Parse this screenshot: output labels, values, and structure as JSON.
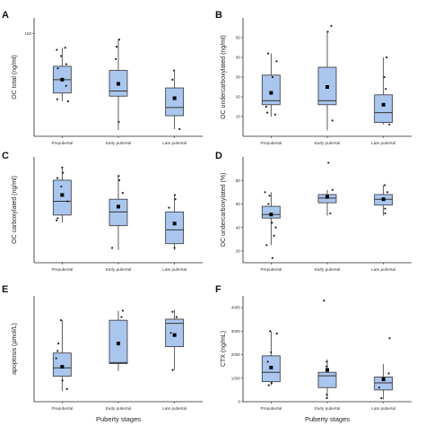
{
  "chart_data": [
    {
      "panel": "A",
      "type": "box",
      "ylabel": "OC total (ng/ml)",
      "xlabel": "",
      "categories": [
        "Prepubertal",
        "Early pubertal",
        "Late pubertal"
      ],
      "ylim": [
        0,
        115
      ],
      "yticks": [
        {
          "value": 100,
          "label": "100"
        }
      ],
      "boxes": [
        {
          "whisker_low": 34,
          "q1": 42,
          "median": 55,
          "q3": 68,
          "whisker_high": 86,
          "mean": 55,
          "points": [
            86,
            84,
            78,
            70,
            66,
            49,
            36,
            34
          ]
        },
        {
          "whisker_low": 6,
          "q1": 39,
          "median": 44,
          "q3": 64,
          "whisker_high": 94,
          "mean": 51,
          "points": [
            94,
            87,
            75,
            14
          ]
        },
        {
          "whisker_low": 7,
          "q1": 20,
          "median": 28,
          "q3": 47,
          "whisker_high": 64,
          "mean": 37,
          "points": [
            64,
            55,
            7
          ]
        }
      ]
    },
    {
      "panel": "B",
      "type": "box",
      "ylabel": "OC undercarboxylated (ng/ml)",
      "xlabel": "",
      "categories": [
        "Prepubertal",
        "Early pubertal",
        "Late pubertal"
      ],
      "ylim": [
        0,
        60
      ],
      "yticks": [
        {
          "value": 10,
          "label": "10"
        },
        {
          "value": 20,
          "label": "20"
        },
        {
          "value": 30,
          "label": "30"
        },
        {
          "value": 40,
          "label": "40"
        },
        {
          "value": 50,
          "label": "50"
        }
      ],
      "boxes": [
        {
          "whisker_low": 10,
          "q1": 16,
          "median": 18,
          "q3": 31,
          "whisker_high": 42,
          "mean": 22,
          "points": [
            42,
            38,
            30,
            15,
            12,
            11
          ]
        },
        {
          "whisker_low": 3,
          "q1": 16,
          "median": 18,
          "q3": 35,
          "whisker_high": 53,
          "mean": 25,
          "points": [
            56,
            53,
            8
          ]
        },
        {
          "whisker_low": 6,
          "q1": 7,
          "median": 12,
          "q3": 21,
          "whisker_high": 40,
          "mean": 16,
          "points": [
            40,
            30,
            24,
            6
          ]
        }
      ]
    },
    {
      "panel": "C",
      "type": "box",
      "ylabel": "OC carboxylated (ng/ml)",
      "xlabel": "",
      "categories": [
        "Prepubertal",
        "Early pubertal",
        "Late pubertal"
      ],
      "ylim": [
        0,
        100
      ],
      "yticks": [],
      "boxes": [
        {
          "whisker_low": 38,
          "q1": 45,
          "median": 58,
          "q3": 78,
          "whisker_high": 90,
          "mean": 64,
          "points": [
            90,
            85,
            80,
            72,
            58,
            42,
            40
          ]
        },
        {
          "whisker_low": 12,
          "q1": 35,
          "median": 48,
          "q3": 60,
          "whisker_high": 82,
          "mean": 53,
          "points": [
            82,
            78,
            66,
            14
          ]
        },
        {
          "whisker_low": 12,
          "q1": 18,
          "median": 31,
          "q3": 48,
          "whisker_high": 63,
          "mean": 37,
          "points": [
            64,
            60,
            52,
            14
          ]
        }
      ]
    },
    {
      "panel": "D",
      "type": "box",
      "ylabel": "OC undercarboxylated (%)",
      "xlabel": "",
      "categories": [
        "Prepubertal",
        "Early pubertal",
        "Late pubertal"
      ],
      "ylim": [
        10,
        100
      ],
      "yticks": [
        {
          "value": 20,
          "label": "20"
        },
        {
          "value": 40,
          "label": "40"
        },
        {
          "value": 60,
          "label": "60"
        },
        {
          "value": 80,
          "label": "80"
        }
      ],
      "boxes": [
        {
          "whisker_low": 25,
          "q1": 48,
          "median": 51,
          "q3": 58,
          "whisker_high": 70,
          "mean": 51,
          "points": [
            70,
            67,
            60,
            44,
            40,
            33,
            25,
            14
          ]
        },
        {
          "whisker_low": 50,
          "q1": 61,
          "median": 65,
          "q3": 68,
          "whisker_high": 72,
          "mean": 66,
          "points": [
            95,
            72,
            52
          ]
        },
        {
          "whisker_low": 50,
          "q1": 59,
          "median": 64,
          "q3": 68,
          "whisker_high": 76,
          "mean": 64,
          "points": [
            76,
            70,
            56,
            52
          ]
        }
      ]
    },
    {
      "panel": "E",
      "type": "box",
      "ylabel": "apoptosis (µmol/L)",
      "xlabel": "Puberty stages",
      "categories": [
        "Prepubertal",
        "Early pubertal",
        "Late pubertal"
      ],
      "ylim": [
        0,
        100
      ],
      "yticks": [],
      "boxes": [
        {
          "whisker_low": 10,
          "q1": 24,
          "median": 32,
          "q3": 46,
          "whisker_high": 77,
          "mean": 33,
          "points": [
            77,
            55,
            48,
            41,
            20,
            12
          ]
        },
        {
          "whisker_low": 29,
          "q1": 36,
          "median": 37,
          "q3": 77,
          "whisker_high": 86,
          "mean": 55,
          "points": [
            86,
            80
          ]
        },
        {
          "whisker_low": 30,
          "q1": 52,
          "median": 74,
          "q3": 78,
          "whisker_high": 87,
          "mean": 63,
          "points": [
            85,
            80,
            65,
            30
          ]
        }
      ]
    },
    {
      "panel": "F",
      "type": "box",
      "ylabel": "CTX (ng/mL)",
      "xlabel": "Puberty stages",
      "categories": [
        "Prepubertal",
        "Early pubertal",
        "Late pubertal"
      ],
      "ylim": [
        0,
        4500
      ],
      "yticks": [
        {
          "value": 0,
          "label": "0"
        },
        {
          "value": 1000,
          "label": "1000"
        },
        {
          "value": 2000,
          "label": "2000"
        },
        {
          "value": 3000,
          "label": "3000"
        },
        {
          "value": 4000,
          "label": "4000"
        }
      ],
      "boxes": [
        {
          "whisker_low": 700,
          "q1": 850,
          "median": 1250,
          "q3": 1950,
          "whisker_high": 3000,
          "mean": 1450,
          "points": [
            3000,
            2900,
            2100,
            1700,
            800,
            700
          ]
        },
        {
          "whisker_low": 150,
          "q1": 600,
          "median": 1100,
          "q3": 1250,
          "whisker_high": 1800,
          "mean": 1350,
          "points": [
            4300,
            1700,
            1500,
            300,
            150
          ]
        },
        {
          "whisker_low": 100,
          "q1": 500,
          "median": 800,
          "q3": 1050,
          "whisker_high": 1600,
          "mean": 950,
          "points": [
            2700,
            1200,
            600,
            150
          ]
        }
      ]
    }
  ],
  "style": {
    "box_fill": "#a9c6ee",
    "box_stroke": "#333333",
    "mean_color": "#000000",
    "point_color": "#222222"
  }
}
